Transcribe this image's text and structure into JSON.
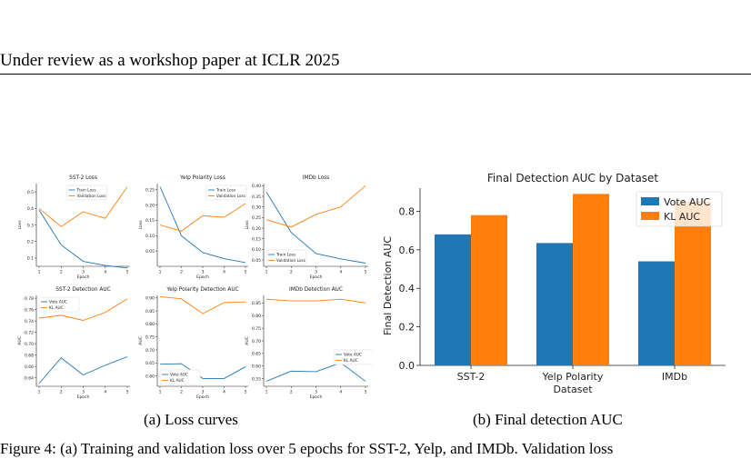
{
  "header": {
    "running_title": "Under review as a workshop paper at ICLR 2025"
  },
  "colors": {
    "blue": "#1f77b4",
    "orange": "#ff7f0e",
    "axis": "#000000"
  },
  "captions": {
    "a": "(a) Loss curves",
    "b": "(b) Final detection AUC"
  },
  "body_text_fragment": "Figure 4: (a) Training and validation loss over 5 epochs for SST-2, Yelp, and IMDb. Validation loss",
  "chart_data": [
    {
      "type": "line",
      "title": "SST-2 Loss",
      "xlabel": "Epoch",
      "ylabel": "Loss",
      "x": [
        1,
        2,
        3,
        4,
        5
      ],
      "xticks": [
        "1",
        "2",
        "3",
        "4",
        "5"
      ],
      "ylim": [
        0.05,
        0.55
      ],
      "yticks": [
        0.1,
        0.2,
        0.3,
        0.4,
        0.5
      ],
      "ytick_labels": [
        "0.1",
        "0.2",
        "0.3",
        "0.4",
        "0.5"
      ],
      "legend_position": "top-center",
      "series": [
        {
          "name": "Train Loss",
          "color": "blue",
          "values": [
            0.39,
            0.18,
            0.08,
            0.055,
            0.04
          ]
        },
        {
          "name": "Validation Loss",
          "color": "orange",
          "values": [
            0.4,
            0.29,
            0.38,
            0.34,
            0.53
          ]
        }
      ]
    },
    {
      "type": "line",
      "title": "Yelp Polarity Loss",
      "xlabel": "Epoch",
      "ylabel": "Loss",
      "x": [
        1,
        2,
        3,
        4,
        5
      ],
      "xticks": [
        "1",
        "2",
        "3",
        "4",
        "5"
      ],
      "ylim": [
        0.0,
        0.27
      ],
      "yticks": [
        0.05,
        0.1,
        0.15,
        0.2,
        0.25
      ],
      "ytick_labels": [
        "0.05",
        "0.10",
        "0.15",
        "0.20",
        "0.25"
      ],
      "legend_position": "top-right",
      "series": [
        {
          "name": "Train Loss",
          "color": "blue",
          "values": [
            0.26,
            0.1,
            0.045,
            0.025,
            0.012
          ]
        },
        {
          "name": "Validation Loss",
          "color": "orange",
          "values": [
            0.135,
            0.115,
            0.165,
            0.16,
            0.205
          ]
        }
      ]
    },
    {
      "type": "line",
      "title": "IMDb Loss",
      "xlabel": "Epoch",
      "ylabel": "Loss",
      "x": [
        1,
        2,
        3,
        4,
        5
      ],
      "xticks": [
        "1",
        "2",
        "3",
        "4",
        "5"
      ],
      "ylim": [
        0.02,
        0.41
      ],
      "yticks": [
        0.05,
        0.1,
        0.15,
        0.2,
        0.25,
        0.3,
        0.35,
        0.4
      ],
      "ytick_labels": [
        "0.05",
        "0.10",
        "0.15",
        "0.20",
        "0.25",
        "0.30",
        "0.35",
        "0.40"
      ],
      "legend_position": "bottom-left",
      "series": [
        {
          "name": "Train Loss",
          "color": "blue",
          "values": [
            0.37,
            0.18,
            0.08,
            0.055,
            0.035
          ]
        },
        {
          "name": "Validation Loss",
          "color": "orange",
          "values": [
            0.24,
            0.205,
            0.265,
            0.3,
            0.4
          ]
        }
      ]
    },
    {
      "type": "line",
      "title": "SST-2 Detection AUC",
      "xlabel": "Epoch",
      "ylabel": "AUC",
      "x": [
        1,
        2,
        3,
        4,
        5
      ],
      "xticks": [
        "1",
        "2",
        "3",
        "4",
        "5"
      ],
      "ylim": [
        0.625,
        0.785
      ],
      "yticks": [
        0.64,
        0.66,
        0.68,
        0.7,
        0.72,
        0.74,
        0.76,
        0.78
      ],
      "ytick_labels": [
        "0.64",
        "0.66",
        "0.68",
        "0.70",
        "0.72",
        "0.74",
        "0.76",
        "0.78"
      ],
      "legend_position": "top-left",
      "series": [
        {
          "name": "Vote AUC",
          "color": "blue",
          "values": [
            0.63,
            0.675,
            0.645,
            0.662,
            0.677
          ]
        },
        {
          "name": "KL AUC",
          "color": "orange",
          "values": [
            0.745,
            0.75,
            0.741,
            0.755,
            0.779
          ]
        }
      ]
    },
    {
      "type": "line",
      "title": "Yelp Polarity Detection AUC",
      "xlabel": "Epoch",
      "ylabel": "AUC",
      "x": [
        1,
        2,
        3,
        4,
        5
      ],
      "xticks": [
        "1",
        "2",
        "3",
        "4",
        "5"
      ],
      "ylim": [
        0.56,
        0.91
      ],
      "yticks": [
        0.6,
        0.65,
        0.7,
        0.75,
        0.8,
        0.85,
        0.9
      ],
      "ytick_labels": [
        "0.60",
        "0.65",
        "0.70",
        "0.75",
        "0.80",
        "0.85",
        "0.90"
      ],
      "legend_position": "bottom-left",
      "series": [
        {
          "name": "Vote AUC",
          "color": "blue",
          "values": [
            0.645,
            0.647,
            0.59,
            0.59,
            0.635
          ]
        },
        {
          "name": "KL AUC",
          "color": "orange",
          "values": [
            0.905,
            0.897,
            0.84,
            0.882,
            0.885
          ]
        }
      ]
    },
    {
      "type": "line",
      "title": "IMDb Detection AUC",
      "xlabel": "Epoch",
      "ylabel": "AUC",
      "x": [
        1,
        2,
        3,
        4,
        5
      ],
      "xticks": [
        "1",
        "2",
        "3",
        "4",
        "5"
      ],
      "ylim": [
        0.52,
        0.88
      ],
      "yticks": [
        0.55,
        0.6,
        0.65,
        0.7,
        0.75,
        0.8,
        0.85
      ],
      "ytick_labels": [
        "0.55",
        "0.60",
        "0.65",
        "0.70",
        "0.75",
        "0.80",
        "0.85"
      ],
      "legend_position": "center-right",
      "series": [
        {
          "name": "Vote AUC",
          "color": "blue",
          "values": [
            0.54,
            0.58,
            0.578,
            0.613,
            0.54
          ]
        },
        {
          "name": "KL AUC",
          "color": "orange",
          "values": [
            0.865,
            0.858,
            0.858,
            0.865,
            0.85
          ]
        }
      ]
    },
    {
      "type": "bar",
      "title": "Final Detection AUC by Dataset",
      "xlabel": "Dataset",
      "ylabel": "Final Detection AUC",
      "categories": [
        "SST-2",
        "Yelp Polarity",
        "IMDb"
      ],
      "ylim": [
        0.0,
        0.92
      ],
      "yticks": [
        0.0,
        0.2,
        0.4,
        0.6,
        0.8
      ],
      "ytick_labels": [
        "0.0",
        "0.2",
        "0.4",
        "0.6",
        "0.8"
      ],
      "legend_position": "top-right",
      "series": [
        {
          "name": "Vote AUC",
          "color": "blue",
          "values": [
            0.68,
            0.635,
            0.54
          ]
        },
        {
          "name": "KL AUC",
          "color": "orange",
          "values": [
            0.78,
            0.89,
            0.85
          ]
        }
      ]
    }
  ]
}
